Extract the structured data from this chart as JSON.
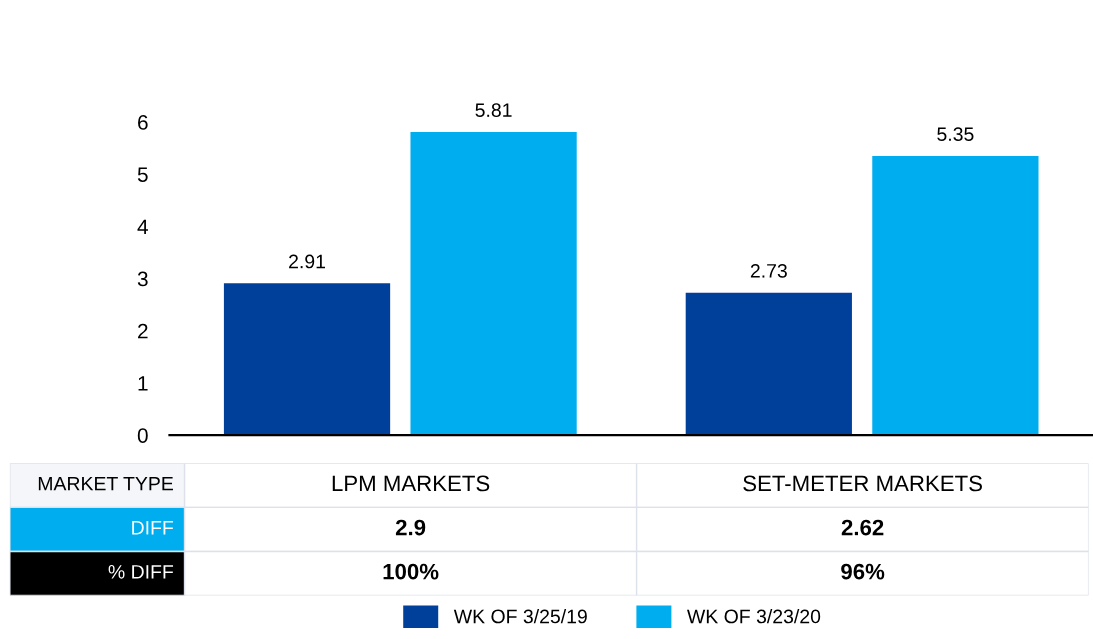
{
  "chart_data": {
    "type": "bar",
    "categories": [
      "LPM MARKETS",
      "SET-METER MARKETS"
    ],
    "series": [
      {
        "name": "WK OF 3/25/19",
        "color": "#003f9a",
        "values": [
          2.91,
          2.73
        ]
      },
      {
        "name": "WK OF 3/23/20",
        "color": "#00aeef",
        "values": [
          5.81,
          5.35
        ]
      }
    ],
    "ylim": [
      0,
      6
    ],
    "yticks": [
      0,
      1,
      2,
      3,
      4,
      5,
      6
    ],
    "data_labels": true,
    "grid": false,
    "legend": "bottom",
    "annotations": [
      "MARKET TYPE",
      "DIFF",
      "2.9",
      "2.62",
      "% DIFF",
      "100%",
      "96%"
    ]
  }
}
